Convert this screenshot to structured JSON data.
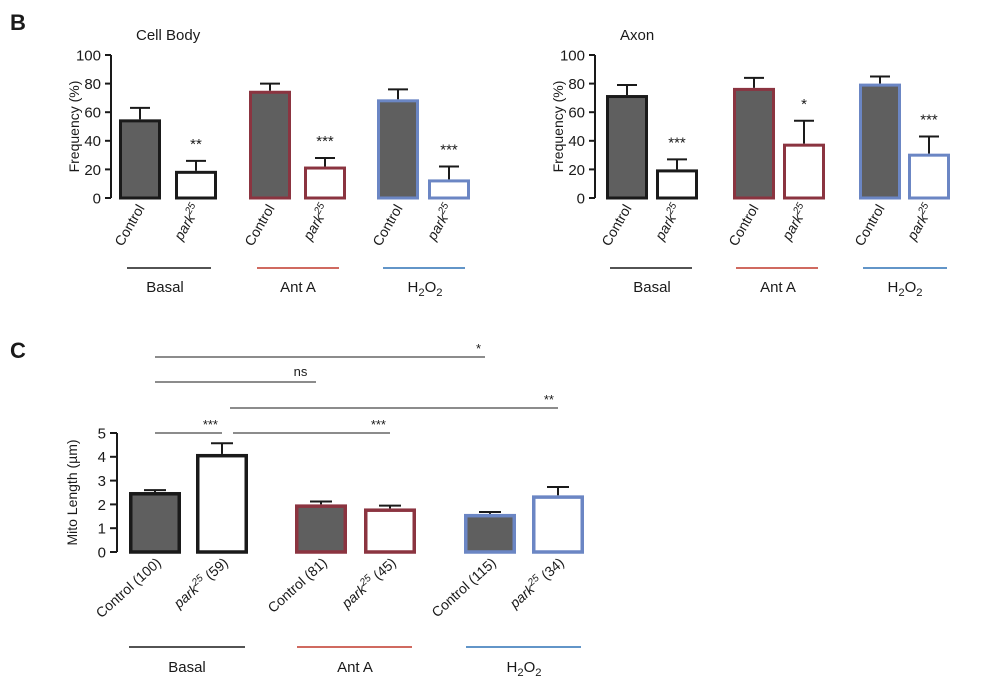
{
  "colors": {
    "fill_control": "#5f5f5f",
    "fill_mutant": "#ffffff",
    "basal": "#1a1a1a",
    "anta": "#8b3440",
    "h2o2": "#6b86c4",
    "line_anta": "#c0392b",
    "line_h2o2": "#2e72b5",
    "line_basal": "#1a1a1a"
  },
  "panel_b": {
    "label": "B",
    "groups": [
      {
        "key": "basal",
        "text": "Basal"
      },
      {
        "key": "anta",
        "text": "Ant A"
      },
      {
        "key": "h2o2",
        "prefix": "H",
        "sub1": "2",
        "mid": "O",
        "sub2": "2"
      }
    ],
    "bar_labels": {
      "control": "Control",
      "mutant_base": "park",
      "mutant_sup": "25"
    }
  },
  "panel_c": {
    "label": "C",
    "groups": [
      {
        "key": "basal",
        "text": "Basal"
      },
      {
        "key": "anta",
        "text": "Ant A"
      },
      {
        "key": "h2o2",
        "prefix": "H",
        "sub1": "2",
        "mid": "O",
        "sub2": "2"
      }
    ],
    "bar_labels": [
      {
        "base": "Control (100)"
      },
      {
        "base": "park",
        "sup": "25",
        "tail": " (59)"
      },
      {
        "base": "Control (81)"
      },
      {
        "base": "park",
        "sup": "25",
        "tail": " (45)"
      },
      {
        "base": "Control (115)"
      },
      {
        "base": "park",
        "sup": "25",
        "tail": " (34)"
      }
    ]
  },
  "chart_data": [
    {
      "type": "bar",
      "title": "Cell Body",
      "ylabel": "Frequency (%)",
      "ylim": [
        0,
        100
      ],
      "yticks": [
        0,
        20,
        40,
        60,
        80,
        100
      ],
      "groups": [
        "Basal",
        "Ant A",
        "H2O2"
      ],
      "bars": [
        {
          "group": "basal",
          "genotype": "Control",
          "value": 55,
          "error": 8
        },
        {
          "group": "basal",
          "genotype": "park25",
          "value": 19,
          "error": 7,
          "sig": "**"
        },
        {
          "group": "anta",
          "genotype": "Control",
          "value": 75,
          "error": 5
        },
        {
          "group": "anta",
          "genotype": "park25",
          "value": 22,
          "error": 6,
          "sig": "***"
        },
        {
          "group": "h2o2",
          "genotype": "Control",
          "value": 69,
          "error": 7
        },
        {
          "group": "h2o2",
          "genotype": "park25",
          "value": 13,
          "error": 9,
          "sig": "***"
        }
      ]
    },
    {
      "type": "bar",
      "title": "Axon",
      "ylabel": "Frequency (%)",
      "ylim": [
        0,
        100
      ],
      "yticks": [
        0,
        20,
        40,
        60,
        80,
        100
      ],
      "groups": [
        "Basal",
        "Ant A",
        "H2O2"
      ],
      "bars": [
        {
          "group": "basal",
          "genotype": "Control",
          "value": 72,
          "error": 7
        },
        {
          "group": "basal",
          "genotype": "park25",
          "value": 20,
          "error": 7,
          "sig": "***"
        },
        {
          "group": "anta",
          "genotype": "Control",
          "value": 77,
          "error": 7
        },
        {
          "group": "anta",
          "genotype": "park25",
          "value": 38,
          "error": 16,
          "sig": "*"
        },
        {
          "group": "h2o2",
          "genotype": "Control",
          "value": 80,
          "error": 5
        },
        {
          "group": "h2o2",
          "genotype": "park25",
          "value": 31,
          "error": 12,
          "sig": "***"
        }
      ]
    },
    {
      "type": "bar",
      "title": "",
      "ylabel": "Mito Length (µm)",
      "ylim": [
        0,
        5
      ],
      "yticks": [
        0,
        1,
        2,
        3,
        4,
        5
      ],
      "groups": [
        "Basal",
        "Ant A",
        "H2O2"
      ],
      "bars": [
        {
          "group": "basal",
          "genotype": "Control",
          "n": 100,
          "value": 2.52,
          "error": 0.08
        },
        {
          "group": "basal",
          "genotype": "park25",
          "n": 59,
          "value": 4.12,
          "error": 0.45
        },
        {
          "group": "anta",
          "genotype": "Control",
          "n": 81,
          "value": 2.0,
          "error": 0.12
        },
        {
          "group": "anta",
          "genotype": "park25",
          "n": 45,
          "value": 1.83,
          "error": 0.12
        },
        {
          "group": "h2o2",
          "genotype": "Control",
          "n": 115,
          "value": 1.6,
          "error": 0.08
        },
        {
          "group": "h2o2",
          "genotype": "park25",
          "n": 34,
          "value": 2.38,
          "error": 0.35
        }
      ],
      "comparisons": [
        {
          "from": 0,
          "to": 4,
          "label": "*"
        },
        {
          "from": 0,
          "to": 2,
          "label": "ns"
        },
        {
          "from": 1,
          "to": 5,
          "label": "**"
        },
        {
          "from": 0,
          "to": 1,
          "label": "***"
        },
        {
          "from": 1,
          "to": 3,
          "label": "***"
        }
      ]
    }
  ]
}
